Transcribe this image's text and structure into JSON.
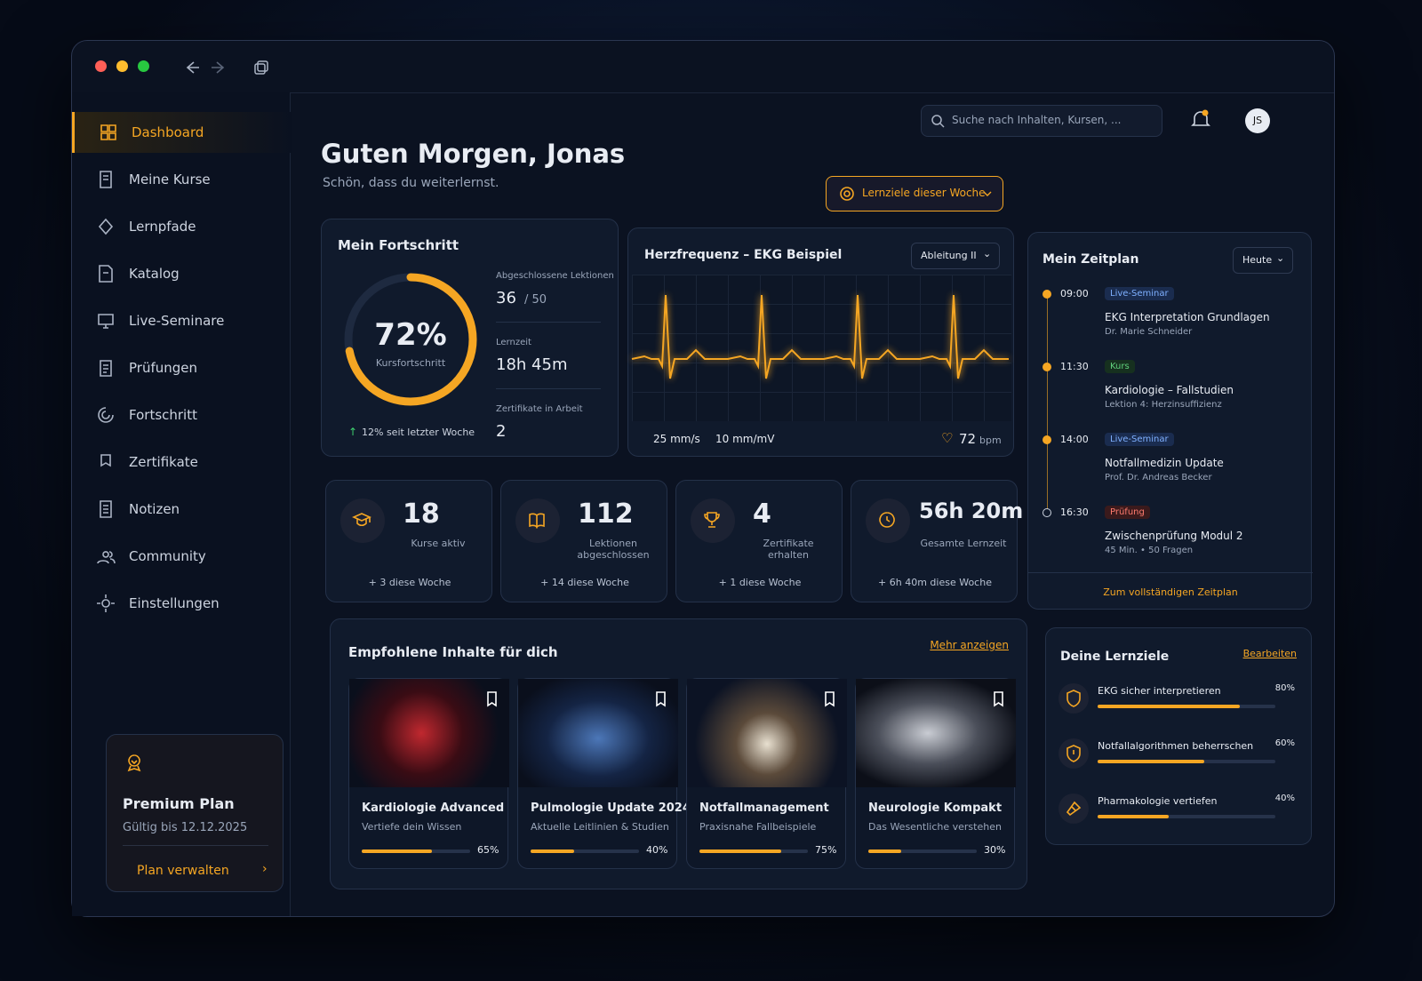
{
  "window": {
    "search_placeholder": "Suche nach Inhalten, Kursen, ...",
    "avatar": "JS"
  },
  "sidebar": {
    "nav": [
      "Dashboard",
      "Meine Kurse",
      "Lernpfade",
      "Katalog",
      "Live-Seminare",
      "Prüfungen",
      "Fortschritt",
      "Zertifikate",
      "Notizen",
      "Community",
      "Einstellungen"
    ],
    "premium": {
      "title": "Premium Plan",
      "valid": "Gültig bis 12.12.2025",
      "action": "Plan verwalten"
    }
  },
  "header": {
    "greeting": "Guten Morgen, Jonas",
    "subtitle": "Schön, dass du weiterlernst.",
    "goals_button": "Lernziele dieser Woche"
  },
  "progress": {
    "title": "Mein Fortschritt",
    "ring": {
      "value": 72,
      "label": "72%"
    },
    "ring_caption": "Kursfortschritt",
    "trend": "12% seit letzter Woche",
    "stats": [
      {
        "label": "Abgeschlossene Lektionen",
        "value": "36",
        "total": "/ 50"
      },
      {
        "label": "Lernzeit",
        "value": "18h 45m"
      },
      {
        "label": "Zertifikate in Arbeit",
        "value": "2"
      }
    ]
  },
  "ekg": {
    "title": "Herzfrequenz – EKG Beispiel",
    "lead": "Ableitung II",
    "speed": "25 mm/s",
    "gain": "10 mm/mV",
    "bpm": "72",
    "bpm_unit": "bpm"
  },
  "kpis": [
    {
      "value": "18",
      "label": "Kurse aktiv",
      "delta": "+ 3 diese Woche"
    },
    {
      "value": "112",
      "label": "Lektionen abgeschlossen",
      "delta": "+ 14 diese Woche"
    },
    {
      "value": "4",
      "label": "Zertifikate erhalten",
      "delta": "+ 1 diese Woche"
    },
    {
      "value": "56h 20m",
      "label": "Gesamte Lernzeit",
      "delta": "+ 6h 40m diese Woche"
    }
  ],
  "recommended": {
    "title": "Empfohlene Inhalte für dich",
    "more": "Mehr anzeigen",
    "items": [
      {
        "title": "Kardiologie Advanced",
        "subtitle": "Vertiefe dein Wissen",
        "progress": {
          "value": 65,
          "label": "65%"
        }
      },
      {
        "title": "Pulmologie Update 2024",
        "subtitle": "Aktuelle Leitlinien & Studien",
        "progress": {
          "value": 40,
          "label": "40%"
        }
      },
      {
        "title": "Notfallmanagement",
        "subtitle": "Praxisnahe Fallbeispiele",
        "progress": {
          "value": 75,
          "label": "75%"
        }
      },
      {
        "title": "Neurologie Kompakt",
        "subtitle": "Das Wesentliche verstehen",
        "progress": {
          "value": 30,
          "label": "30%"
        }
      }
    ]
  },
  "schedule": {
    "title": "Mein Zeitplan",
    "filter": "Heute",
    "events": [
      {
        "time": "09:00",
        "tag": "Live-Seminar",
        "title": "EKG Interpretation Grundlagen",
        "subtitle": "Dr. Marie Schneider"
      },
      {
        "time": "11:30",
        "tag": "Kurs",
        "title": "Kardiologie – Fallstudien",
        "subtitle": "Lektion 4: Herzinsuffizienz"
      },
      {
        "time": "14:00",
        "tag": "Live-Seminar",
        "title": "Notfallmedizin Update",
        "subtitle": "Prof. Dr. Andreas Becker"
      },
      {
        "time": "16:30",
        "tag": "Prüfung",
        "title": "Zwischenprüfung Modul 2",
        "subtitle": "45 Min. • 50 Fragen"
      }
    ],
    "link": "Zum vollständigen Zeitplan"
  },
  "goals": {
    "title": "Deine Lernziele",
    "edit": "Bearbeiten",
    "items": [
      {
        "label": "EKG sicher interpretieren",
        "progress": {
          "value": 80,
          "label": "80%"
        }
      },
      {
        "label": "Notfallalgorithmen beherrschen",
        "progress": {
          "value": 60,
          "label": "60%"
        }
      },
      {
        "label": "Pharmakologie vertiefen",
        "progress": {
          "value": 40,
          "label": "40%"
        }
      }
    ]
  }
}
